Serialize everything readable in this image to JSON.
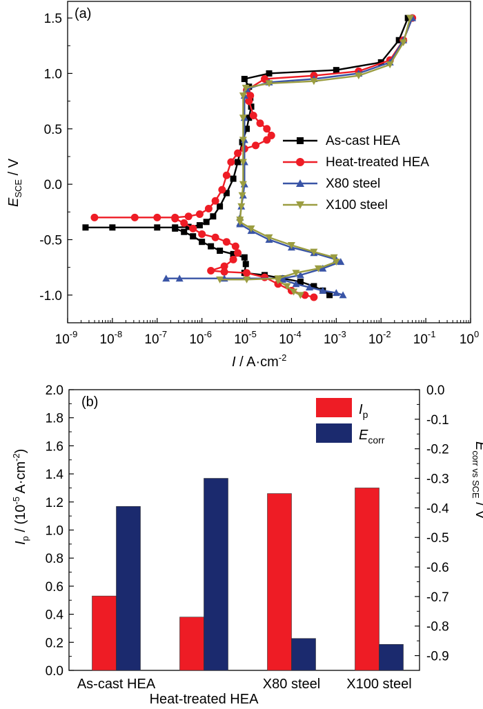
{
  "chart_data": [
    {
      "type": "line",
      "panel": "(a)",
      "title": "",
      "xlabel": "I / A·cm-2",
      "xlabel_parts": {
        "var": "I",
        "unit": " / A·cm",
        "sup": "-2"
      },
      "ylabel": "E_SCE / V",
      "ylabel_parts": {
        "var": "E",
        "sub": "SCE",
        "unit": " / V"
      },
      "xscale": "log",
      "xlim_exp": [
        -9,
        0
      ],
      "ylim": [
        -1.25,
        1.65
      ],
      "xtick_labels": [
        {
          "base": "10",
          "exp": "-9"
        },
        {
          "base": "10",
          "exp": "-8"
        },
        {
          "base": "10",
          "exp": "-7"
        },
        {
          "base": "10",
          "exp": "-6"
        },
        {
          "base": "10",
          "exp": "-5"
        },
        {
          "base": "10",
          "exp": "-4"
        },
        {
          "base": "10",
          "exp": "-3"
        },
        {
          "base": "10",
          "exp": "-2"
        },
        {
          "base": "10",
          "exp": "-1"
        },
        {
          "base": "10",
          "exp": "0"
        }
      ],
      "yticks": [
        -1.0,
        -0.5,
        0.0,
        0.5,
        1.0,
        1.5
      ],
      "ytick_labels": [
        "-1.0",
        "-0.5",
        "0.0",
        "0.5",
        "1.0",
        "1.5"
      ],
      "legend_position": "center-right",
      "series": [
        {
          "name": "As-cast HEA",
          "color": "#000000",
          "marker": "square",
          "points": [
            [
              -8.6,
              -0.39
            ],
            [
              -8,
              -0.39
            ],
            [
              -7,
              -0.39
            ],
            [
              -6.6,
              -0.39
            ],
            [
              -6.3,
              -0.385
            ],
            [
              -6.05,
              -0.37
            ],
            [
              -5.9,
              -0.34
            ],
            [
              -5.75,
              -0.29
            ],
            [
              -5.6,
              -0.2
            ],
            [
              -5.45,
              -0.08
            ],
            [
              -5.3,
              0.05
            ],
            [
              -5.2,
              0.2
            ],
            [
              -5.1,
              0.38
            ],
            [
              -5.0,
              0.5
            ],
            [
              -4.95,
              0.6
            ],
            [
              -4.9,
              0.7
            ],
            [
              -4.92,
              0.78
            ],
            [
              -4.95,
              0.88
            ],
            [
              -5.05,
              0.95
            ],
            [
              -4.5,
              1.0
            ],
            [
              -3,
              1.03
            ],
            [
              -2,
              1.1
            ],
            [
              -1.6,
              1.3
            ],
            [
              -1.4,
              1.5
            ]
          ],
          "branch2": [
            [
              -6.6,
              -0.4
            ],
            [
              -6.4,
              -0.43
            ],
            [
              -6.2,
              -0.47
            ],
            [
              -6.0,
              -0.52
            ],
            [
              -5.8,
              -0.56
            ],
            [
              -5.6,
              -0.6
            ],
            [
              -5.3,
              -0.63
            ],
            [
              -5.05,
              -0.66
            ],
            [
              -5.02,
              -0.72
            ],
            [
              -5.05,
              -0.8
            ],
            [
              -4.6,
              -0.82
            ],
            [
              -4.2,
              -0.85
            ],
            [
              -3.8,
              -0.88
            ],
            [
              -3.5,
              -0.92
            ],
            [
              -3.3,
              -0.96
            ],
            [
              -3.15,
              -1.0
            ]
          ]
        },
        {
          "name": "Heat-treated HEA",
          "color": "#ee1c25",
          "marker": "circle",
          "points": [
            [
              -8.4,
              -0.3
            ],
            [
              -7.5,
              -0.3
            ],
            [
              -7,
              -0.3
            ],
            [
              -6.6,
              -0.3
            ],
            [
              -6.3,
              -0.29
            ],
            [
              -6.05,
              -0.27
            ],
            [
              -5.85,
              -0.22
            ],
            [
              -5.7,
              -0.15
            ],
            [
              -5.55,
              -0.05
            ],
            [
              -5.45,
              0.08
            ],
            [
              -5.35,
              0.2
            ],
            [
              -5.2,
              0.28
            ],
            [
              -5.05,
              0.32
            ],
            [
              -4.8,
              0.35
            ],
            [
              -4.55,
              0.4
            ],
            [
              -4.45,
              0.44
            ],
            [
              -4.55,
              0.5
            ],
            [
              -4.7,
              0.55
            ],
            [
              -4.85,
              0.62
            ],
            [
              -4.95,
              0.75
            ],
            [
              -4.92,
              0.8
            ],
            [
              -5.0,
              0.85
            ],
            [
              -4.6,
              0.95
            ],
            [
              -3.5,
              0.98
            ],
            [
              -2.5,
              1.02
            ],
            [
              -1.8,
              1.12
            ],
            [
              -1.5,
              1.3
            ],
            [
              -1.3,
              1.5
            ]
          ],
          "branch2": [
            [
              -6.6,
              -0.31
            ],
            [
              -6.4,
              -0.35
            ],
            [
              -6.2,
              -0.4
            ],
            [
              -6.0,
              -0.45
            ],
            [
              -5.7,
              -0.48
            ],
            [
              -5.45,
              -0.52
            ],
            [
              -5.25,
              -0.56
            ],
            [
              -5.2,
              -0.62
            ],
            [
              -5.3,
              -0.68
            ],
            [
              -5.5,
              -0.74
            ],
            [
              -5.8,
              -0.78
            ],
            [
              -5.5,
              -0.79
            ],
            [
              -5.0,
              -0.8
            ],
            [
              -4.6,
              -0.84
            ],
            [
              -4.3,
              -0.9
            ],
            [
              -4.0,
              -0.96
            ],
            [
              -3.7,
              -1.0
            ],
            [
              -3.5,
              -1.02
            ]
          ]
        },
        {
          "name": "X80 steel",
          "color": "#3954a6",
          "marker": "triangle",
          "points": [
            [
              -5.15,
              -0.35
            ],
            [
              -5.15,
              -0.3
            ],
            [
              -5.12,
              -0.2
            ],
            [
              -5.08,
              -0.1
            ],
            [
              -5.05,
              0.0
            ],
            [
              -5.05,
              0.2
            ],
            [
              -5.05,
              0.4
            ],
            [
              -5.05,
              0.6
            ],
            [
              -5.05,
              0.8
            ],
            [
              -5.0,
              0.86
            ],
            [
              -4.5,
              0.92
            ],
            [
              -3.5,
              0.95
            ],
            [
              -2.5,
              1.0
            ],
            [
              -1.8,
              1.1
            ],
            [
              -1.5,
              1.3
            ],
            [
              -1.3,
              1.5
            ]
          ],
          "branch2": [
            [
              -5.15,
              -0.36
            ],
            [
              -4.9,
              -0.42
            ],
            [
              -4.5,
              -0.5
            ],
            [
              -4.0,
              -0.57
            ],
            [
              -3.5,
              -0.62
            ],
            [
              -3.0,
              -0.68
            ],
            [
              -2.9,
              -0.7
            ],
            [
              -3.3,
              -0.76
            ],
            [
              -3.8,
              -0.82
            ],
            [
              -4.2,
              -0.85
            ],
            [
              -5.5,
              -0.85
            ],
            [
              -6.5,
              -0.85
            ],
            [
              -6.8,
              -0.85
            ]
          ],
          "branch3": [
            [
              -4.2,
              -0.86
            ],
            [
              -3.9,
              -0.9
            ],
            [
              -3.6,
              -0.93
            ],
            [
              -3.3,
              -0.96
            ],
            [
              -3.0,
              -0.98
            ],
            [
              -2.85,
              -1.0
            ]
          ]
        },
        {
          "name": "X100 steel",
          "color": "#9b9d41",
          "marker": "triangle-down",
          "points": [
            [
              -5.15,
              -0.32
            ],
            [
              -5.12,
              -0.2
            ],
            [
              -5.1,
              -0.1
            ],
            [
              -5.08,
              0.0
            ],
            [
              -5.08,
              0.2
            ],
            [
              -5.08,
              0.4
            ],
            [
              -5.08,
              0.6
            ],
            [
              -5.08,
              0.8
            ],
            [
              -5.02,
              0.87
            ],
            [
              -4.5,
              0.91
            ],
            [
              -3.5,
              0.93
            ],
            [
              -2.5,
              0.98
            ],
            [
              -1.8,
              1.08
            ],
            [
              -1.5,
              1.28
            ],
            [
              -1.35,
              1.5
            ]
          ],
          "branch2": [
            [
              -5.15,
              -0.34
            ],
            [
              -4.9,
              -0.4
            ],
            [
              -4.5,
              -0.48
            ],
            [
              -4.0,
              -0.55
            ],
            [
              -3.5,
              -0.61
            ],
            [
              -3.05,
              -0.66
            ],
            [
              -3.0,
              -0.7
            ],
            [
              -3.4,
              -0.76
            ],
            [
              -3.9,
              -0.8
            ],
            [
              -4.3,
              -0.85
            ],
            [
              -5.0,
              -0.86
            ],
            [
              -5.6,
              -0.86
            ]
          ],
          "branch3": [
            [
              -4.3,
              -0.87
            ],
            [
              -4.1,
              -0.92
            ],
            [
              -3.95,
              -0.97
            ],
            [
              -3.8,
              -1.0
            ]
          ]
        }
      ]
    },
    {
      "type": "bar",
      "panel": "(b)",
      "title": "",
      "categories": [
        "As-cast HEA",
        "Heat-treated HEA",
        "X80 steel",
        "X100 steel"
      ],
      "ylabel": "I_p / (10^-5 A·cm^-2)",
      "ylabel_parts": {
        "var": "I",
        "sub": "p",
        "pre": " / (10",
        "sup1": "-5",
        "mid": " A·cm",
        "sup2": "-2",
        "post": ")"
      },
      "y2label": "E_corr vs SCE / V",
      "y2label_parts": {
        "var": "E",
        "sub": "corr vs SCE",
        "post": " / V"
      },
      "ylim": [
        0.0,
        2.0
      ],
      "yticks": [
        0.0,
        0.2,
        0.4,
        0.6,
        0.8,
        1.0,
        1.2,
        1.4,
        1.6,
        1.8,
        2.0
      ],
      "ytick_labels": [
        "0.0",
        "0.2",
        "0.4",
        "0.6",
        "0.8",
        "1.0",
        "1.2",
        "1.4",
        "1.6",
        "1.8",
        "2.0"
      ],
      "y2lim": [
        -0.95,
        0.0
      ],
      "y2ticks": [
        0.0,
        -0.1,
        -0.2,
        -0.3,
        -0.4,
        -0.5,
        -0.6,
        -0.7,
        -0.8,
        -0.9
      ],
      "y2tick_labels": [
        "0.0",
        "-0.1",
        "-0.2",
        "-0.3",
        "-0.4",
        "-0.5",
        "-0.6",
        "-0.7",
        "-0.8",
        "-0.9"
      ],
      "legend_position": "top-right",
      "series": [
        {
          "name": "I_p",
          "label_parts": {
            "var": "I",
            "sub": "p"
          },
          "axis": "left",
          "color": "#ee1c25",
          "values": [
            0.53,
            0.38,
            1.26,
            1.3
          ]
        },
        {
          "name": "E_corr",
          "label_parts": {
            "var": "E",
            "sub": "corr"
          },
          "axis": "right",
          "color": "#1b2a6e",
          "values": [
            -0.395,
            -0.3,
            -0.842,
            -0.862
          ]
        }
      ]
    }
  ]
}
